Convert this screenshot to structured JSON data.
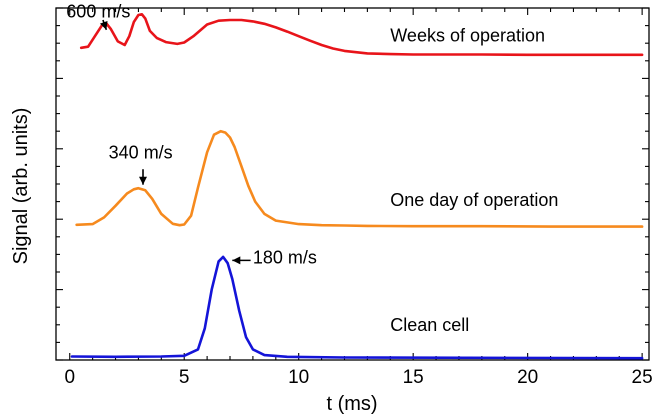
{
  "chart_data": {
    "type": "line",
    "title": "",
    "xlabel": "t (ms)",
    "ylabel": "Signal (arb. units)",
    "xlim": [
      -0.6,
      25.3
    ],
    "ylim": [
      0,
      10
    ],
    "xticks": [
      0,
      5,
      10,
      15,
      20,
      25
    ],
    "xtick_labels": [
      "0",
      "5",
      "10",
      "15",
      "20",
      "25"
    ],
    "grid": false,
    "legend": "none",
    "series": [
      {
        "name": "Weeks of operation",
        "color": "#e8141a",
        "x": [
          0.5,
          0.8,
          1.1,
          1.4,
          1.6,
          1.8,
          2.1,
          2.4,
          2.6,
          2.8,
          3.0,
          3.15,
          3.3,
          3.5,
          3.8,
          4.2,
          4.7,
          5.0,
          5.4,
          6.0,
          6.5,
          7.0,
          7.5,
          8.0,
          8.5,
          9.0,
          9.5,
          10.0,
          10.5,
          11.0,
          11.5,
          12.0,
          13.0,
          14.0,
          15.0,
          16.0,
          18.0,
          20.0,
          22.0,
          24.0,
          25.0
        ],
        "y": [
          8.87,
          8.9,
          9.2,
          9.5,
          9.56,
          9.4,
          9.05,
          8.95,
          9.2,
          9.6,
          9.8,
          9.82,
          9.7,
          9.35,
          9.15,
          9.03,
          8.98,
          9.02,
          9.2,
          9.53,
          9.64,
          9.66,
          9.66,
          9.62,
          9.55,
          9.45,
          9.33,
          9.2,
          9.07,
          8.95,
          8.85,
          8.78,
          8.71,
          8.69,
          8.68,
          8.68,
          8.68,
          8.67,
          8.67,
          8.67,
          8.67
        ]
      },
      {
        "name": "One day of operation",
        "color": "#f68a1e",
        "x": [
          0.3,
          1.0,
          1.5,
          2.0,
          2.5,
          2.8,
          3.0,
          3.3,
          3.6,
          4.0,
          4.5,
          4.8,
          5.0,
          5.3,
          5.6,
          6.0,
          6.3,
          6.6,
          6.8,
          7.0,
          7.2,
          7.5,
          7.8,
          8.1,
          8.5,
          9.0,
          10.0,
          11.0,
          12.0,
          13.0,
          15.0,
          18.0,
          21.0,
          25.0
        ],
        "y": [
          3.84,
          3.86,
          4.05,
          4.38,
          4.73,
          4.85,
          4.88,
          4.82,
          4.58,
          4.15,
          3.87,
          3.83,
          3.85,
          4.1,
          4.9,
          5.9,
          6.4,
          6.5,
          6.46,
          6.32,
          6.05,
          5.5,
          4.95,
          4.5,
          4.15,
          3.96,
          3.86,
          3.83,
          3.82,
          3.81,
          3.8,
          3.8,
          3.79,
          3.79
        ]
      },
      {
        "name": "Clean cell",
        "color": "#1414d8",
        "x": [
          0.1,
          2.0,
          4.0,
          5.0,
          5.6,
          5.9,
          6.2,
          6.5,
          6.7,
          6.9,
          7.1,
          7.4,
          7.7,
          8.0,
          8.5,
          9.5,
          12.0,
          25.0
        ],
        "y": [
          0.1,
          0.09,
          0.1,
          0.12,
          0.3,
          0.9,
          2.0,
          2.8,
          2.93,
          2.75,
          2.3,
          1.4,
          0.65,
          0.3,
          0.14,
          0.09,
          0.07,
          0.05
        ]
      }
    ],
    "annotations": [
      {
        "text": "Weeks of operation",
        "x": 14.0,
        "y": 9.05,
        "color": "#000000"
      },
      {
        "text": "One day of operation",
        "x": 14.0,
        "y": 4.37,
        "color": "#000000"
      },
      {
        "text": "Clean cell",
        "x": 14.0,
        "y": 0.82,
        "color": "#000000"
      },
      {
        "text": "600 m/s",
        "x": -0.15,
        "y": 9.73,
        "arrow_from": [
          1.45,
          9.66
        ],
        "arrow_to": [
          1.6,
          9.38
        ]
      },
      {
        "text": "340 m/s",
        "x": 1.7,
        "y": 5.72,
        "arrow_from": [
          3.2,
          5.42
        ],
        "arrow_to": [
          3.2,
          4.98
        ]
      },
      {
        "text": "180 m/s",
        "x": 8.0,
        "y": 2.74,
        "arrow_from": [
          7.9,
          2.83
        ],
        "arrow_to": [
          7.1,
          2.83
        ]
      }
    ]
  }
}
